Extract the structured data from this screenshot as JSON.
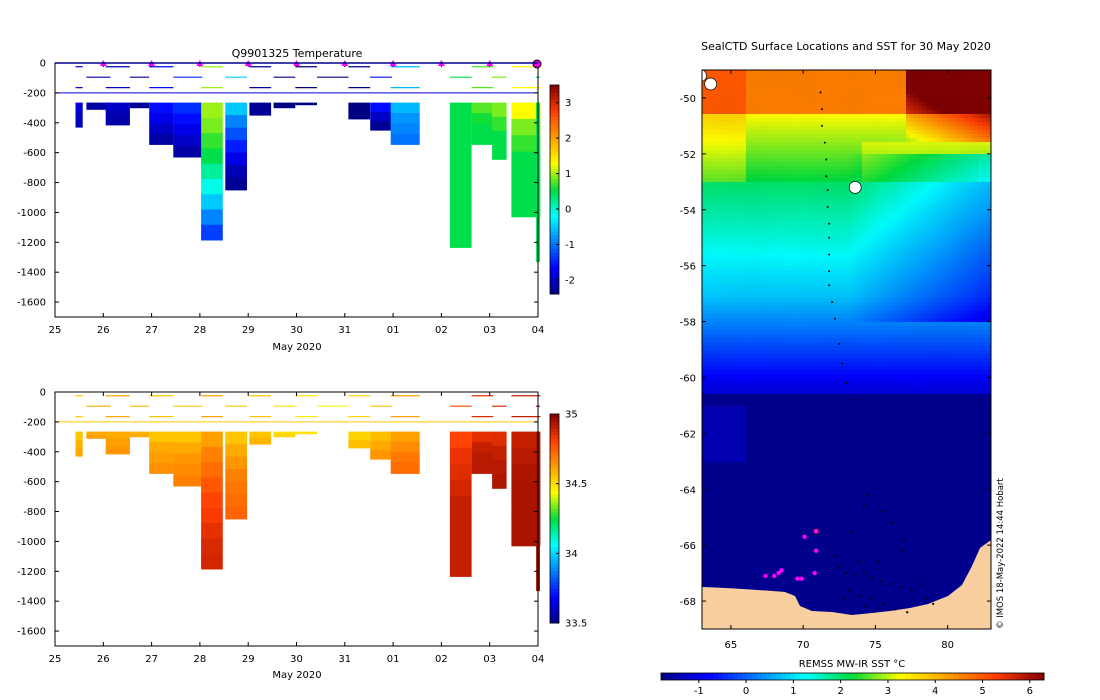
{
  "chart_data": [
    {
      "type": "heatmap",
      "panel": "temperature-section",
      "title": "Q9901325  Temperature",
      "xlabel": "May 2020",
      "xticks": [
        "25",
        "26",
        "27",
        "28",
        "29",
        "30",
        "31",
        "01",
        "02",
        "03",
        "04"
      ],
      "xlim": [
        25,
        35
      ],
      "ylim": [
        -1700,
        0
      ],
      "yticks": [
        0,
        -200,
        -400,
        -600,
        -800,
        -1000,
        -1200,
        -1400,
        -1600
      ],
      "surface_markers_day": [
        26,
        27,
        28,
        29,
        30,
        31,
        32,
        33,
        34,
        35
      ],
      "colorbar": {
        "range": [
          -2.4,
          3.5
        ],
        "ticks": [
          -2,
          -1,
          0,
          1,
          2,
          3
        ]
      },
      "profiles": [
        {
          "t": 25.5,
          "w": 0.15,
          "depth": 430,
          "v": [
            -1.9,
            -2.0,
            -2.1
          ]
        },
        {
          "t": 25.9,
          "w": 0.5,
          "depth": 310,
          "v": [
            -2.2,
            -2.2
          ]
        },
        {
          "t": 26.3,
          "w": 0.5,
          "depth": 415,
          "v": [
            -2.0,
            -2.1,
            -2.2
          ]
        },
        {
          "t": 26.75,
          "w": 0.4,
          "depth": 300,
          "v": [
            -2.3,
            -2.3
          ]
        },
        {
          "t": 27.2,
          "w": 0.5,
          "depth": 545,
          "v": [
            -1.6,
            -1.8,
            -2.0,
            -2.2
          ]
        },
        {
          "t": 27.75,
          "w": 0.6,
          "depth": 630,
          "v": [
            -1.4,
            -1.6,
            -1.8,
            -2.0,
            -2.2
          ]
        },
        {
          "t": 28.25,
          "w": 0.45,
          "depth": 1185,
          "v": [
            1.0,
            0.9,
            0.7,
            0.5,
            0.2,
            -0.1,
            -0.5,
            -0.9,
            -1.3
          ]
        },
        {
          "t": 28.75,
          "w": 0.45,
          "depth": 850,
          "v": [
            -0.5,
            -0.9,
            -1.2,
            -1.5,
            -1.8,
            -2.1,
            -2.3
          ]
        },
        {
          "t": 29.25,
          "w": 0.45,
          "depth": 350,
          "v": [
            -2.3,
            -2.3
          ]
        },
        {
          "t": 29.75,
          "w": 0.45,
          "depth": 300,
          "v": [
            -2.4,
            -2.4
          ]
        },
        {
          "t": 30.2,
          "w": 0.45,
          "depth": 280,
          "v": [
            -2.4,
            -2.4
          ]
        },
        {
          "t": 30.75,
          "w": 0.65,
          "depth": 250,
          "v": [
            -2.4,
            -2.4
          ]
        },
        {
          "t": 31.3,
          "w": 0.45,
          "depth": 375,
          "v": [
            -2.4,
            -2.4
          ]
        },
        {
          "t": 31.75,
          "w": 0.45,
          "depth": 450,
          "v": [
            -1.6,
            -2.0,
            -2.3
          ]
        },
        {
          "t": 32.25,
          "w": 0.6,
          "depth": 545,
          "v": [
            -0.6,
            -0.8,
            -0.9,
            -1.0
          ]
        },
        {
          "t": 33.4,
          "w": 0.45,
          "depth": 1235,
          "v": [
            0.5,
            0.5,
            0.5,
            0.5,
            0.5,
            0.5,
            0.5,
            0.5,
            0.5
          ]
        },
        {
          "t": 33.85,
          "w": 0.45,
          "depth": 545,
          "v": [
            0.8,
            0.6,
            0.5,
            0.5
          ]
        },
        {
          "t": 34.2,
          "w": 0.3,
          "depth": 645,
          "v": [
            0.9,
            0.7,
            0.5,
            0.5
          ]
        },
        {
          "t": 34.75,
          "w": 0.6,
          "depth": 1030,
          "v": [
            1.3,
            0.9,
            0.7,
            0.5,
            0.5,
            0.5,
            0.5
          ]
        },
        {
          "t": 35.0,
          "w": 0.08,
          "depth": 1330,
          "v": [
            0.4,
            0.4,
            0.4,
            0.4,
            0.4,
            0.4,
            0.4,
            0.4,
            0.4
          ]
        }
      ]
    },
    {
      "type": "heatmap",
      "panel": "salinity-section",
      "title": "",
      "xlabel": "May 2020",
      "xticks": [
        "25",
        "26",
        "27",
        "28",
        "29",
        "30",
        "31",
        "01",
        "02",
        "03",
        "04"
      ],
      "xlim": [
        25,
        35
      ],
      "ylim": [
        -1700,
        0
      ],
      "yticks": [
        0,
        -200,
        -400,
        -600,
        -800,
        -1000,
        -1200,
        -1400,
        -1600
      ],
      "colorbar": {
        "range": [
          33.5,
          35
        ],
        "ticks": [
          33.5,
          34,
          34.5,
          35
        ]
      },
      "profiles": [
        {
          "t": 25.5,
          "w": 0.15,
          "depth": 430,
          "v": [
            34.55,
            34.58,
            34.6
          ]
        },
        {
          "t": 25.9,
          "w": 0.5,
          "depth": 310,
          "v": [
            34.6,
            34.62
          ]
        },
        {
          "t": 26.3,
          "w": 0.5,
          "depth": 415,
          "v": [
            34.6,
            34.62,
            34.64
          ]
        },
        {
          "t": 26.75,
          "w": 0.4,
          "depth": 300,
          "v": [
            34.58,
            34.6
          ]
        },
        {
          "t": 27.2,
          "w": 0.5,
          "depth": 545,
          "v": [
            34.55,
            34.6,
            34.62,
            34.65
          ]
        },
        {
          "t": 27.75,
          "w": 0.6,
          "depth": 630,
          "v": [
            34.55,
            34.6,
            34.64,
            34.66,
            34.68
          ]
        },
        {
          "t": 28.25,
          "w": 0.45,
          "depth": 1185,
          "v": [
            34.62,
            34.68,
            34.72,
            34.76,
            34.8,
            34.82,
            34.85,
            34.87,
            34.88
          ]
        },
        {
          "t": 28.75,
          "w": 0.45,
          "depth": 850,
          "v": [
            34.55,
            34.6,
            34.64,
            34.68,
            34.7,
            34.72,
            34.74
          ]
        },
        {
          "t": 29.25,
          "w": 0.45,
          "depth": 350,
          "v": [
            34.55,
            34.58
          ]
        },
        {
          "t": 29.75,
          "w": 0.45,
          "depth": 300,
          "v": [
            34.5,
            34.52
          ]
        },
        {
          "t": 30.2,
          "w": 0.45,
          "depth": 280,
          "v": [
            34.48,
            34.5
          ]
        },
        {
          "t": 30.75,
          "w": 0.65,
          "depth": 250,
          "v": [
            34.45,
            34.47
          ]
        },
        {
          "t": 31.3,
          "w": 0.45,
          "depth": 375,
          "v": [
            34.52,
            34.56
          ]
        },
        {
          "t": 31.75,
          "w": 0.45,
          "depth": 450,
          "v": [
            34.56,
            34.6,
            34.64
          ]
        },
        {
          "t": 32.25,
          "w": 0.6,
          "depth": 545,
          "v": [
            34.62,
            34.66,
            34.7,
            34.72
          ]
        },
        {
          "t": 33.4,
          "w": 0.45,
          "depth": 1235,
          "v": [
            34.8,
            34.84,
            34.86,
            34.88,
            34.9,
            34.9,
            34.9,
            34.9,
            34.9
          ]
        },
        {
          "t": 33.85,
          "w": 0.45,
          "depth": 545,
          "v": [
            34.85,
            34.9,
            34.92,
            34.92
          ]
        },
        {
          "t": 34.2,
          "w": 0.3,
          "depth": 645,
          "v": [
            34.86,
            34.9,
            34.92,
            34.93
          ]
        },
        {
          "t": 34.75,
          "w": 0.6,
          "depth": 1030,
          "v": [
            34.9,
            34.92,
            34.93,
            34.94,
            34.94,
            34.94,
            34.94
          ]
        },
        {
          "t": 35.0,
          "w": 0.08,
          "depth": 1330,
          "v": [
            34.94,
            34.94,
            34.94,
            34.94,
            34.94,
            34.94,
            34.94,
            34.94,
            34.94
          ]
        }
      ]
    },
    {
      "type": "heatmap",
      "panel": "sst-map",
      "title": "SealCTD Surface Locations and SST for 30 May 2020",
      "xticks": [
        "65",
        "70",
        "75",
        "80"
      ],
      "xlim": [
        63,
        83
      ],
      "yticks": [
        "-50",
        "-52",
        "-54",
        "-56",
        "-58",
        "-60",
        "-62",
        "-64",
        "-66",
        "-68"
      ],
      "ylim": [
        -69,
        -49
      ],
      "colorbar": {
        "label": "REMSS MW-IR SST °C",
        "range": [
          -1.8,
          6.3
        ],
        "ticks": [
          "-1",
          "0",
          "1",
          "2",
          "3",
          "4",
          "5",
          "6"
        ]
      },
      "watermark": "© IMOS 18-May-2022 14:44 Hobart",
      "track_lonlat": [
        [
          71.2,
          -49.8
        ],
        [
          71.3,
          -50.4
        ],
        [
          71.3,
          -51.0
        ],
        [
          71.5,
          -51.6
        ],
        [
          71.6,
          -52.2
        ],
        [
          71.6,
          -52.8
        ],
        [
          71.7,
          -53.3
        ],
        [
          71.7,
          -53.9
        ],
        [
          71.8,
          -54.5
        ],
        [
          71.8,
          -55.0
        ],
        [
          71.8,
          -55.6
        ],
        [
          71.8,
          -56.2
        ],
        [
          71.8,
          -56.7
        ],
        [
          72.0,
          -57.3
        ],
        [
          72.2,
          -57.9
        ],
        [
          72.5,
          -58.8
        ],
        [
          72.7,
          -59.5
        ],
        [
          73.0,
          -60.2
        ],
        [
          73.4,
          -60.8
        ]
      ],
      "cluster_lonlat": [
        [
          72.5,
          -66.8
        ],
        [
          73.0,
          -67.0
        ],
        [
          73.6,
          -67.1
        ],
        [
          74.2,
          -67.0
        ],
        [
          74.8,
          -67.2
        ],
        [
          75.4,
          -67.3
        ],
        [
          76.0,
          -67.4
        ],
        [
          76.8,
          -67.5
        ],
        [
          77.5,
          -67.6
        ],
        [
          78.2,
          -67.4
        ],
        [
          73.2,
          -67.6
        ],
        [
          74.0,
          -67.8
        ],
        [
          74.6,
          -67.9
        ],
        [
          75.6,
          -68.1
        ],
        [
          76.4,
          -68.3
        ],
        [
          77.2,
          -68.4
        ],
        [
          72.8,
          -67.9
        ],
        [
          74.3,
          -68.2
        ],
        [
          73.8,
          -66.6
        ],
        [
          75.2,
          -66.6
        ],
        [
          74.5,
          -64.2
        ],
        [
          74.2,
          -64.6
        ],
        [
          75.5,
          -64.8
        ],
        [
          76.2,
          -65.2
        ],
        [
          77.0,
          -65.8
        ],
        [
          73.3,
          -65.5
        ],
        [
          72.2,
          -66.4
        ],
        [
          78.5,
          -67.9
        ],
        [
          79.0,
          -68.1
        ],
        [
          76.8,
          -66.2
        ]
      ],
      "surface_locations_lonlat": [
        [
          70.9,
          -65.5
        ],
        [
          70.1,
          -65.7
        ],
        [
          70.9,
          -66.2
        ],
        [
          67.4,
          -67.1
        ],
        [
          68.0,
          -67.1
        ],
        [
          68.3,
          -67.0
        ],
        [
          68.5,
          -66.9
        ],
        [
          69.6,
          -67.2
        ],
        [
          69.9,
          -67.2
        ],
        [
          70.8,
          -67.0
        ]
      ],
      "icebergs_lonlat": [
        [
          62.9,
          -49.2
        ],
        [
          63.6,
          -49.5
        ],
        [
          73.6,
          -53.2
        ]
      ]
    }
  ]
}
